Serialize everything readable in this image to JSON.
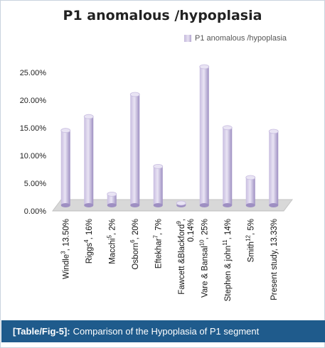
{
  "caption": {
    "tag": "[Table/Fig-5]:",
    "text": "Comparison of the Hypoplasia of P1 segment"
  },
  "colors": {
    "bar_light": "#e9e4f4",
    "bar_mid": "#c8bde0",
    "bar_dark": "#9e8fc2",
    "floor": "#d8d8d8",
    "caption_bg": "#1f5b8c"
  },
  "chart_data": {
    "type": "bar",
    "title": "P1 anomalous /hypoplasia",
    "legend": "top-right",
    "series": [
      {
        "name": "P1 anomalous /hypoplasia",
        "values": [
          13.5,
          16,
          2,
          20,
          7,
          0.14,
          25,
          14,
          5,
          13.33
        ]
      }
    ],
    "categories": [
      {
        "name": "Windle",
        "sup": "3",
        "val": ", 13.50%"
      },
      {
        "name": "Riggs",
        "sup": "4",
        "val": ", 16%"
      },
      {
        "name": "Macchi",
        "sup": "5",
        "val": ", 2%"
      },
      {
        "name": "Osborn",
        "sup": "6",
        "val": ", 20%"
      },
      {
        "name": "Eftekhar",
        "sup": "7",
        "val": ", 7%"
      },
      {
        "name": "Fawcett &Blackford",
        "sup": "9",
        "val": ",",
        "line2": "0.14%"
      },
      {
        "name": "Vare & Bansal",
        "sup": "10",
        "val": ", 25%"
      },
      {
        "name": "Stephen & john",
        "sup": "11",
        "val": ", 14%"
      },
      {
        "name": "Smith",
        "sup": "12",
        "val": ", 5%"
      },
      {
        "name": "Present study, 13.33%",
        "sup": "",
        "val": ""
      }
    ],
    "yticks": [
      "0.00%",
      "5.00%",
      "10.00%",
      "15.00%",
      "20.00%",
      "25.00%"
    ],
    "ylim": [
      0,
      25
    ]
  }
}
